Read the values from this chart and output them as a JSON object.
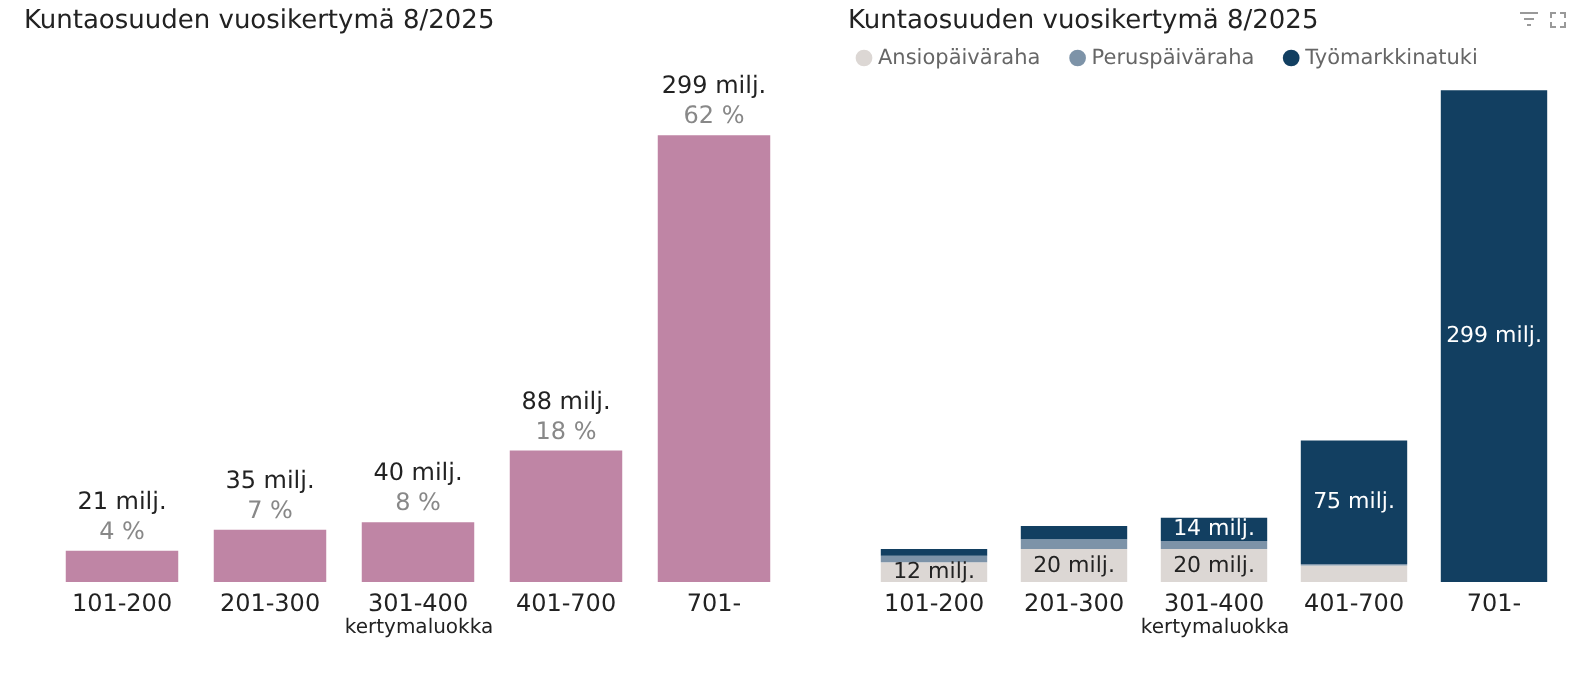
{
  "chart_data": [
    {
      "type": "bar",
      "title": "Kuntaosuuden vuosikertymä 8/2025",
      "xlabel": "kertymaluokka",
      "categories": [
        "101-200",
        "201-300",
        "301-400",
        "401-700",
        "701-"
      ],
      "values": [
        21,
        35,
        40,
        88,
        299
      ],
      "color": "#bf85a5",
      "value_labels": [
        "21 milj.",
        "35 milj.",
        "40 milj.",
        "88 milj.",
        "299 milj."
      ],
      "annotations": [
        {
          "text": "4 %",
          "x": "101-200",
          "y": 21
        },
        {
          "text": "7 %",
          "x": "201-300",
          "y": 35
        },
        {
          "text": "8 %",
          "x": "301-400",
          "y": 40
        },
        {
          "text": "18 %",
          "x": "401-700",
          "y": 88
        },
        {
          "text": "62 %",
          "x": "701-",
          "y": 299
        }
      ]
    },
    {
      "type": "bar",
      "title": "Kuntaosuuden vuosikertymä 8/2025",
      "xlabel": "kertymaluokka",
      "stacked": true,
      "legend": "top left",
      "categories": [
        "101-200",
        "201-300",
        "301-400",
        "401-700",
        "701-"
      ],
      "series": [
        {
          "name": "Ansiopäiväraha",
          "color": "#dcd7d4",
          "values": [
            12,
            20,
            20,
            10,
            0
          ],
          "value_labels": [
            "12 milj.",
            "20 milj.",
            "20 milj.",
            null,
            null
          ]
        },
        {
          "name": "Peruspäiväraha",
          "color": "#7d93a8",
          "values": [
            4,
            6,
            5,
            1,
            0
          ],
          "value_labels": [
            null,
            null,
            null,
            null,
            null
          ]
        },
        {
          "name": "Työmarkkinatuki",
          "color": "#123f61",
          "values": [
            4,
            8,
            14,
            75,
            299
          ],
          "value_labels": [
            null,
            null,
            "14 milj.",
            "75 milj.",
            "299 milj."
          ]
        }
      ]
    }
  ]
}
